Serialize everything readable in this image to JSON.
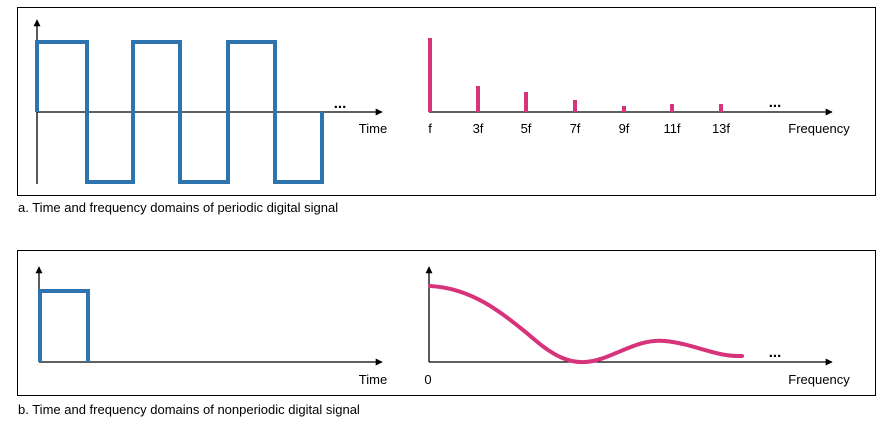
{
  "colors": {
    "time_signal": "#2e75b0",
    "frequency_signal": "#d6337a",
    "axis": "#000000"
  },
  "figure_a": {
    "caption": "a. Time and frequency domains of periodic digital signal",
    "time_axis_label": "Time",
    "time_ellipsis": "...",
    "frequency_axis_label": "Frequency",
    "frequency_ellipsis": "...",
    "harmonic_labels": [
      "f",
      "3f",
      "5f",
      "7f",
      "9f",
      "11f",
      "13f"
    ]
  },
  "figure_b": {
    "caption": "b. Time and frequency domains of nonperiodic digital signal",
    "time_axis_label": "Time",
    "frequency_origin_label": "0",
    "frequency_axis_label": "Frequency",
    "frequency_ellipsis": "..."
  }
}
